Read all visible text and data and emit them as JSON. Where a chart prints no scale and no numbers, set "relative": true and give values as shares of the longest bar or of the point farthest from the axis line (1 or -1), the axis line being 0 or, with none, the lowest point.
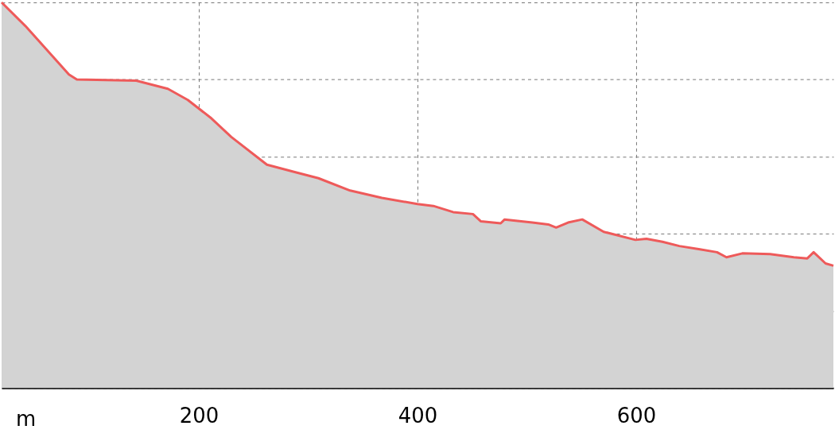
{
  "chart_data": {
    "type": "area",
    "relative": true,
    "xlabel": "m",
    "x": [
      19.6,
      41.3,
      81.2,
      88.4,
      142.8,
      171.7,
      189.9,
      211.6,
      229.7,
      262.3,
      287.7,
      309.4,
      338.4,
      367.4,
      400,
      414.5,
      432.6,
      450.7,
      458,
      476.1,
      479.7,
      505,
      519.6,
      526.8,
      537.7,
      550.7,
      570.3,
      599.3,
      609.4,
      624,
      639.5,
      657.2,
      673.9,
      682.6,
      697.1,
      722.5,
      744.2,
      756.5,
      762.3,
      773.2,
      780.4
    ],
    "series": [
      {
        "color": "#ee5a5a",
        "values": [
          1.0,
          0.939,
          0.813,
          0.8,
          0.797,
          0.776,
          0.747,
          0.699,
          0.651,
          0.579,
          0.56,
          0.544,
          0.512,
          0.493,
          0.477,
          0.472,
          0.456,
          0.451,
          0.432,
          0.427,
          0.437,
          0.429,
          0.424,
          0.416,
          0.429,
          0.437,
          0.405,
          0.384,
          0.387,
          0.379,
          0.368,
          0.36,
          0.352,
          0.339,
          0.349,
          0.347,
          0.339,
          0.336,
          0.352,
          0.323,
          0.317
        ]
      }
    ],
    "xlim": [
      19.6,
      780.4
    ],
    "xticks": [
      200,
      400,
      600
    ],
    "grid": true,
    "line_style": "dashed"
  }
}
